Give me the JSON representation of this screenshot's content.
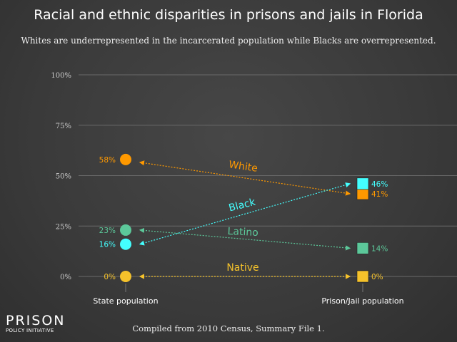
{
  "title": "Racial and ethnic disparities in prisons and jails in Florida",
  "subtitle": "Whites are underrepresented in the incarcerated population while Blacks are overrepresented.",
  "footer": "Compiled from 2010 Census, Summary File 1.",
  "logo": {
    "line1": "PRISON",
    "line2": "POLICY INITIATIVE"
  },
  "chart_data": {
    "type": "slope",
    "title": "Racial and ethnic disparities in prisons and jails in Florida",
    "categories": [
      "State population",
      "Prison/Jail population"
    ],
    "yticks": [
      "0%",
      "25%",
      "50%",
      "75%",
      "100%"
    ],
    "ylim": [
      0,
      100
    ],
    "series": [
      {
        "name": "White",
        "color": "#ff9900",
        "values": [
          58,
          41
        ],
        "labels": [
          "58%",
          "41%"
        ]
      },
      {
        "name": "Black",
        "color": "#44ffff",
        "values": [
          16,
          46
        ],
        "labels": [
          "16%",
          "46%"
        ]
      },
      {
        "name": "Latino",
        "color": "#5cc89a",
        "values": [
          23,
          14
        ],
        "labels": [
          "23%",
          "14%"
        ]
      },
      {
        "name": "Native",
        "color": "#f5c22b",
        "values": [
          0,
          0
        ],
        "labels": [
          "0%",
          "0%"
        ]
      }
    ]
  }
}
